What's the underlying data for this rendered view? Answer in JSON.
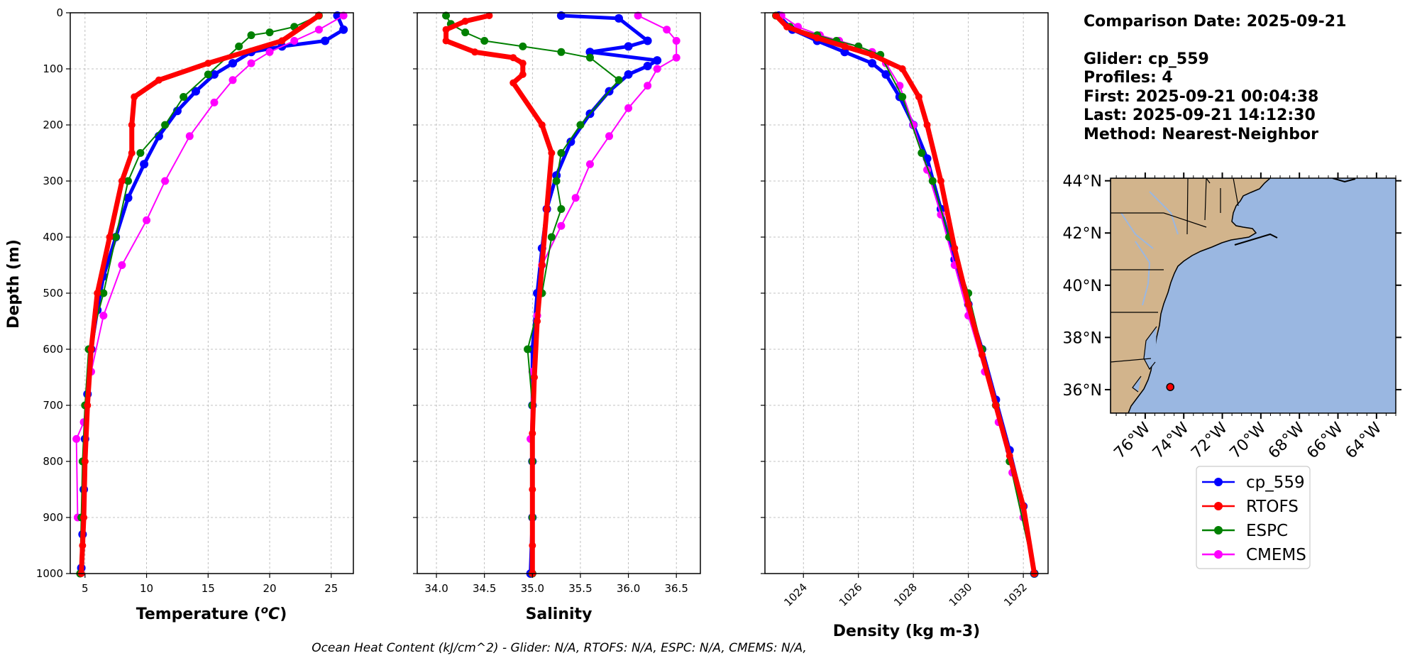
{
  "chart_data": [
    {
      "type": "line",
      "xlabel": "Temperature ($^oC$)",
      "ylabel": "Depth (m)",
      "ylim": [
        1000,
        0
      ],
      "xlim": [
        3.8,
        26.8
      ],
      "xticks": [
        5,
        10,
        15,
        20,
        25
      ],
      "yticks": [
        0,
        100,
        200,
        300,
        400,
        500,
        600,
        700,
        800,
        900,
        1000
      ],
      "grid": true,
      "series": [
        {
          "name": "cp_559",
          "x": [
            25.5,
            26.0,
            24.5,
            21.0,
            18.5,
            17.0,
            15.5,
            14.0,
            12.5,
            11.0,
            9.8,
            8.5,
            7.5,
            6.5,
            6.0,
            5.5,
            5.2,
            5.0,
            4.9,
            4.8,
            4.7
          ],
          "y": [
            5,
            30,
            50,
            60,
            70,
            90,
            110,
            140,
            175,
            220,
            270,
            330,
            400,
            470,
            530,
            600,
            680,
            760,
            850,
            930,
            990
          ]
        },
        {
          "name": "RTOFS",
          "x": [
            24.0,
            21.0,
            15.0,
            11.0,
            9.0,
            8.8,
            8.8,
            8.0,
            7.0,
            6.0,
            5.5,
            5.2,
            5.0,
            4.9,
            4.8,
            4.7
          ],
          "y": [
            5,
            50,
            90,
            120,
            150,
            200,
            250,
            300,
            400,
            500,
            600,
            700,
            800,
            900,
            950,
            1000
          ]
        },
        {
          "name": "ESPC",
          "x": [
            24.0,
            22.0,
            20.0,
            18.5,
            17.5,
            15.0,
            13.0,
            11.5,
            9.5,
            8.5,
            7.5,
            6.5,
            5.3,
            5.0,
            4.8,
            4.7,
            4.6
          ],
          "y": [
            5,
            25,
            35,
            40,
            60,
            110,
            150,
            200,
            250,
            300,
            400,
            500,
            600,
            700,
            800,
            900,
            1000
          ]
        },
        {
          "name": "CMEMS",
          "x": [
            26.0,
            24.0,
            22.0,
            20.0,
            18.5,
            17.0,
            15.5,
            13.5,
            11.5,
            10.0,
            8.0,
            6.5,
            5.5,
            4.9,
            4.3,
            4.4
          ],
          "y": [
            5,
            30,
            50,
            70,
            90,
            120,
            160,
            220,
            300,
            370,
            450,
            540,
            640,
            730,
            760,
            900
          ]
        }
      ]
    },
    {
      "type": "line",
      "xlabel": "Salinity",
      "ylim": [
        1000,
        0
      ],
      "xlim": [
        33.8,
        36.75
      ],
      "xticks": [
        34.0,
        34.5,
        35.0,
        35.5,
        36.0,
        36.5
      ],
      "grid": true,
      "series": [
        {
          "name": "cp_559",
          "x": [
            35.3,
            35.9,
            36.2,
            36.0,
            35.6,
            36.3,
            36.2,
            36.0,
            35.8,
            35.6,
            35.4,
            35.25,
            35.15,
            35.1,
            35.05,
            35.0,
            35.0,
            35.0,
            35.0,
            34.98
          ],
          "y": [
            5,
            10,
            50,
            60,
            70,
            85,
            95,
            110,
            140,
            180,
            230,
            290,
            350,
            420,
            500,
            600,
            700,
            800,
            900,
            1000
          ]
        },
        {
          "name": "RTOFS",
          "x": [
            34.55,
            34.3,
            34.1,
            34.1,
            34.4,
            34.8,
            34.9,
            34.9,
            34.8,
            35.1,
            35.2,
            35.15,
            35.1,
            35.05,
            35.02,
            35.0,
            35.0,
            35.0,
            35.0
          ],
          "y": [
            5,
            15,
            30,
            50,
            70,
            80,
            90,
            110,
            125,
            200,
            250,
            350,
            450,
            550,
            650,
            750,
            850,
            950,
            1000
          ]
        },
        {
          "name": "ESPC",
          "x": [
            34.1,
            34.15,
            34.3,
            34.5,
            34.9,
            35.3,
            35.6,
            35.9,
            35.5,
            35.3,
            35.25,
            35.3,
            35.2,
            35.1,
            34.95,
            35.0,
            35.0,
            35.0,
            35.0
          ],
          "y": [
            5,
            20,
            35,
            50,
            60,
            70,
            80,
            120,
            200,
            250,
            300,
            350,
            400,
            500,
            600,
            700,
            800,
            900,
            1000
          ]
        },
        {
          "name": "CMEMS",
          "x": [
            36.1,
            36.4,
            36.5,
            36.5,
            36.3,
            36.2,
            36.0,
            35.8,
            35.6,
            35.45,
            35.3,
            35.1,
            35.05,
            35.0,
            34.98,
            35.0,
            35.0
          ],
          "y": [
            5,
            30,
            50,
            80,
            100,
            130,
            170,
            220,
            270,
            330,
            380,
            450,
            540,
            640,
            760,
            900,
            1000
          ]
        }
      ]
    },
    {
      "type": "line",
      "xlabel": "Density (kg m-3)",
      "ylim": [
        1000,
        0
      ],
      "xlim": [
        1022.6,
        1032.9
      ],
      "xticks": [
        1024,
        1026,
        1028,
        1030,
        1032
      ],
      "grid": true,
      "series": [
        {
          "name": "cp_559",
          "x": [
            1023.1,
            1023.6,
            1024.5,
            1025.5,
            1026.5,
            1027.0,
            1027.5,
            1028.0,
            1028.5,
            1029.0,
            1029.5,
            1030.0,
            1030.5,
            1031.0,
            1031.5,
            1032.0,
            1032.4
          ],
          "y": [
            5,
            30,
            50,
            70,
            90,
            110,
            150,
            200,
            260,
            350,
            440,
            520,
            600,
            690,
            780,
            880,
            1000
          ]
        },
        {
          "name": "RTOFS",
          "x": [
            1023.0,
            1023.4,
            1024.5,
            1025.5,
            1026.5,
            1027.6,
            1028.2,
            1028.5,
            1029.0,
            1029.5,
            1030.0,
            1030.5,
            1031.0,
            1031.5,
            1032.0,
            1032.4
          ],
          "y": [
            5,
            25,
            45,
            60,
            75,
            100,
            150,
            200,
            300,
            420,
            520,
            610,
            700,
            790,
            880,
            1000
          ]
        },
        {
          "name": "ESPC",
          "x": [
            1023.0,
            1023.5,
            1024.5,
            1025.2,
            1026.0,
            1026.8,
            1027.6,
            1028.3,
            1028.7,
            1029.3,
            1030.0,
            1030.5,
            1031.0,
            1031.5,
            1032.4
          ],
          "y": [
            5,
            25,
            40,
            50,
            60,
            75,
            150,
            250,
            300,
            400,
            500,
            600,
            700,
            800,
            1000
          ]
        },
        {
          "name": "CMEMS",
          "x": [
            1023.2,
            1023.8,
            1024.6,
            1025.3,
            1026.0,
            1026.5,
            1027.0,
            1027.5,
            1028.0,
            1028.5,
            1029.0,
            1029.5,
            1030.0,
            1030.6,
            1031.1,
            1031.6,
            1032.0
          ],
          "y": [
            5,
            25,
            40,
            50,
            60,
            70,
            90,
            130,
            200,
            280,
            360,
            450,
            540,
            640,
            730,
            820,
            900
          ]
        }
      ]
    }
  ],
  "info": {
    "comparison_date": "Comparison Date: 2025-09-21",
    "glider": "Glider: cp_559",
    "profiles": "Profiles: 4",
    "first": "First: 2025-09-21 00:04:38",
    "last": "Last: 2025-09-21 14:12:30",
    "method": "Method: Nearest-Neighbor"
  },
  "map": {
    "lat_ticks": [
      "44°N",
      "42°N",
      "40°N",
      "38°N",
      "36°N"
    ],
    "lon_ticks": [
      "76°W",
      "74°W",
      "72°W",
      "70°W",
      "68°W",
      "66°W",
      "64°W"
    ],
    "glider_position": {
      "lon": -74.7,
      "lat": 36.1
    },
    "lon_range": [
      -77.8,
      -63.0
    ],
    "lat_range": [
      35.1,
      44.1
    ],
    "land_color": "#d2b48c",
    "ocean_color": "#9ab7e1",
    "marker_color": "#ff0000"
  },
  "legend": {
    "items": [
      {
        "label": "cp_559",
        "color": "#0000ff"
      },
      {
        "label": "RTOFS",
        "color": "#ff0000"
      },
      {
        "label": "ESPC",
        "color": "#008000"
      },
      {
        "label": "CMEMS",
        "color": "#ff00ff"
      }
    ]
  },
  "footer": "Ocean Heat Content (kJ/cm^2) - Glider: N/A,  RTOFS: N/A,  ESPC: N/A,  CMEMS: N/A,"
}
